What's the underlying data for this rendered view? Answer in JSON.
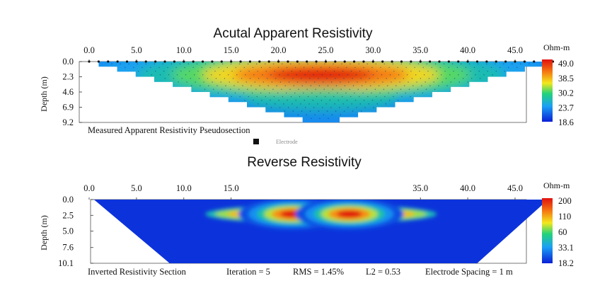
{
  "chart_data": [
    {
      "type": "heatmap",
      "title": "Acutal Apparent Resistivity",
      "xlabel": "",
      "ylabel": "Depth (m)",
      "x_ticks": [
        "0.0",
        "5.0",
        "10.0",
        "15.0",
        "20.0",
        "25.0",
        "30.0",
        "35.0",
        "40.0",
        "45.0"
      ],
      "x_tick_values": [
        0,
        5,
        10,
        15,
        20,
        25,
        30,
        35,
        40,
        45
      ],
      "xlim": [
        0,
        49
      ],
      "y_ticks": [
        "0.0",
        "2.3",
        "4.6",
        "6.9",
        "9.2"
      ],
      "y_tick_values": [
        0.0,
        2.3,
        4.6,
        6.9,
        9.2
      ],
      "ylim": [
        0,
        9.2
      ],
      "colorbar_unit": "Ohm-m",
      "colorbar_ticks": [
        "49.0",
        "38.5",
        "30.2",
        "23.7",
        "18.6"
      ],
      "colorbar_range": [
        18.6,
        49.0
      ],
      "caption": "Measured Apparent Resistivity Pseudosection",
      "legend_text": "Electrode",
      "section_extent": {
        "top_left_x": 1.0,
        "top_right_x": 48.0,
        "apex_x": 24.5,
        "apex_depth": 9.2
      },
      "anomalies": [
        {
          "x": 24.5,
          "depth": 2.0,
          "value": 49.0,
          "spread_x": 6.0,
          "spread_depth": 1.6
        }
      ],
      "background_value": 19.5
    },
    {
      "type": "heatmap",
      "title": "Reverse Resistivity",
      "xlabel": "",
      "ylabel": "Depth (m)",
      "x_ticks": [
        "0.0",
        "5.0",
        "10.0",
        "15.0",
        "35.0",
        "40.0",
        "45.0"
      ],
      "x_tick_values": [
        0,
        5,
        10,
        15,
        35,
        40,
        45
      ],
      "xlim": [
        0,
        49
      ],
      "y_ticks": [
        "0.0",
        "2.5",
        "5.0",
        "7.6",
        "10.1"
      ],
      "y_tick_values": [
        0.0,
        2.5,
        5.0,
        7.6,
        10.1
      ],
      "ylim": [
        0,
        10.1
      ],
      "colorbar_unit": "Ohm-m",
      "colorbar_ticks": [
        "200",
        "110",
        "60",
        "33.1",
        "18.2"
      ],
      "colorbar_range": [
        18.2,
        200
      ],
      "caption_items": [
        "Inverted Resistivity Section",
        "Iteration = 5",
        "RMS = 1.45%",
        "L2 = 0.53",
        "Electrode Spacing = 1 m"
      ],
      "section_extent": {
        "top_left_x": 0.5,
        "top_right_x": 48.5,
        "bottom_left_x": 8.5,
        "bottom_right_x": 41.0,
        "bottom_depth": 10.1
      },
      "anomalies": [
        {
          "x": 21.5,
          "depth": 2.3,
          "value": 200,
          "spread_x": 2.6,
          "spread_depth": 1.0
        },
        {
          "x": 27.5,
          "depth": 2.3,
          "value": 200,
          "spread_x": 2.6,
          "spread_depth": 1.0
        }
      ],
      "background_value": 19
    }
  ]
}
